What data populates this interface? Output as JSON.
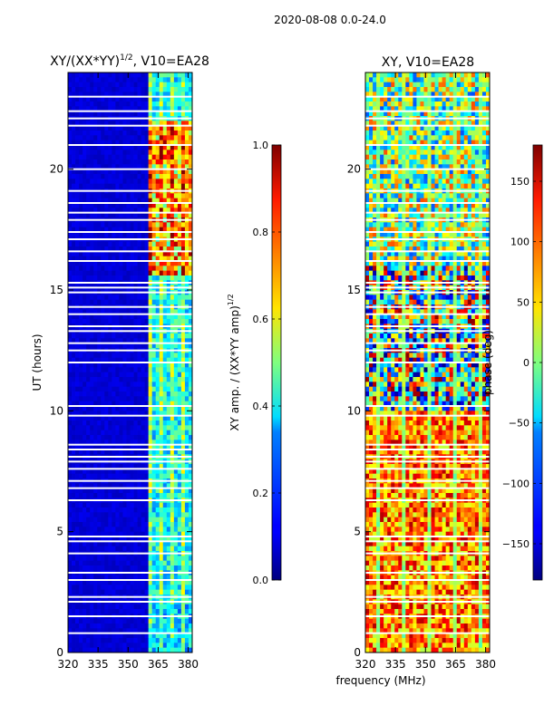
{
  "suptitle": "2020-08-08 0.0-24.0",
  "chart_data": [
    {
      "type": "heatmap",
      "title": "XY/(XX*YY)$^{1/2}$, V10=EA28",
      "title_main": "XY/(XX*YY)",
      "title_sup": "1/2",
      "title_tail": ", V10=EA28",
      "xlabel": "",
      "ylabel": "UT (hours)",
      "xlim": [
        320,
        382
      ],
      "ylim": [
        0,
        24
      ],
      "xticks": [
        320,
        335,
        350,
        365,
        380
      ],
      "xtick_labels": [
        "320",
        "335",
        "350",
        "365",
        "380"
      ],
      "yticks": [
        0,
        5,
        10,
        15,
        20
      ],
      "ytick_labels": [
        "0",
        "5",
        "10",
        "15",
        "20"
      ],
      "colorbar": {
        "label_main": "XY amp. / (XX*YY amp)",
        "label_sup": "1/2",
        "range": [
          0.0,
          1.0
        ],
        "ticks": [
          0.0,
          0.2,
          0.4,
          0.6,
          0.8,
          1.0
        ],
        "tick_labels": [
          "0.0",
          "0.2",
          "0.4",
          "0.6",
          "0.8",
          "1.0"
        ],
        "colormap": "jet"
      },
      "flagged_channel_range_mhz": [
        320,
        360
      ]
    },
    {
      "type": "heatmap",
      "title": "XY, V10=EA28",
      "xlabel": "frequency (MHz)",
      "ylabel": "",
      "xlim": [
        320,
        382
      ],
      "ylim": [
        0,
        24
      ],
      "xticks": [
        320,
        335,
        350,
        365,
        380
      ],
      "xtick_labels": [
        "320",
        "335",
        "350",
        "365",
        "380"
      ],
      "yticks": [
        0,
        5,
        10,
        15,
        20
      ],
      "ytick_labels": [
        "0",
        "5",
        "10",
        "15",
        "20"
      ],
      "colorbar": {
        "label": "phase (deg)",
        "range": [
          -180,
          180
        ],
        "ticks": [
          -150,
          -100,
          -50,
          0,
          50,
          100,
          150
        ],
        "tick_labels": [
          "−150",
          "−100",
          "−50",
          "0",
          "50",
          "100",
          "150"
        ],
        "colormap": "jet"
      }
    }
  ],
  "gap_times_hours": [
    0.8,
    1.5,
    2.1,
    2.3,
    3.0,
    3.3,
    4.1,
    4.6,
    4.8,
    6.3,
    6.8,
    7.1,
    7.6,
    7.9,
    8.1,
    8.4,
    8.6,
    9.8,
    10.2,
    12.0,
    12.5,
    12.8,
    13.3,
    13.5,
    14.0,
    14.3,
    14.9,
    15.1,
    15.3,
    16.2,
    16.6,
    17.1,
    17.4,
    17.9,
    18.2,
    18.6,
    19.1,
    20.0,
    21.0,
    21.8,
    22.1,
    22.4,
    23.0
  ]
}
